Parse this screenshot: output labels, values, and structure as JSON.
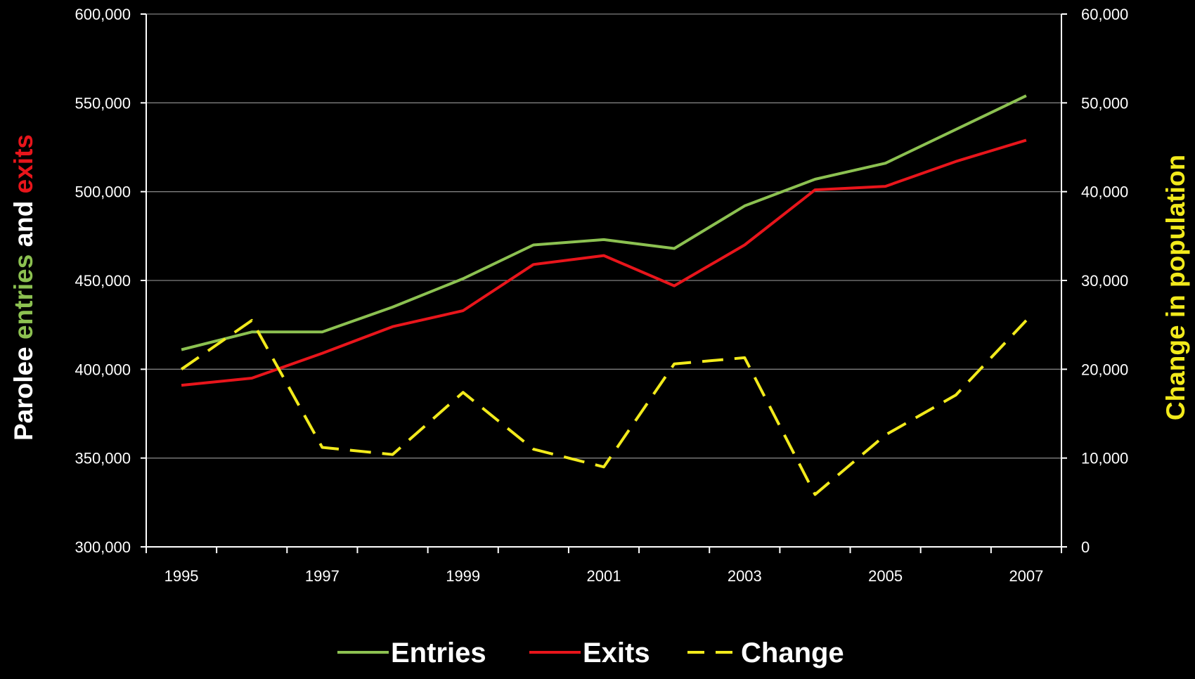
{
  "chart_data": {
    "type": "line",
    "x": [
      1995,
      1996,
      1997,
      1998,
      1999,
      2000,
      2001,
      2002,
      2003,
      2004,
      2005,
      2006,
      2007
    ],
    "x_tick_labels": [
      "1995",
      "1997",
      "1999",
      "2001",
      "2003",
      "2005",
      "2007"
    ],
    "xlim": [
      1994.5,
      2007.5
    ],
    "y_left": {
      "lim": [
        300000,
        600000
      ],
      "ticks": [
        300000,
        350000,
        400000,
        450000,
        500000,
        550000,
        600000
      ],
      "tick_labels": [
        "300,000",
        "350,000",
        "400,000",
        "450,000",
        "500,000",
        "550,000",
        "600,000"
      ],
      "title_parts": [
        {
          "text": "Parolee ",
          "color": "#ffffff"
        },
        {
          "text": "entries",
          "color": "#8cc151"
        },
        {
          "text": " and ",
          "color": "#ffffff"
        },
        {
          "text": "exits",
          "color": "#e8151b"
        }
      ]
    },
    "y_right": {
      "lim": [
        0,
        60000
      ],
      "ticks": [
        0,
        10000,
        20000,
        30000,
        40000,
        50000,
        60000
      ],
      "tick_labels": [
        "0",
        "10,000",
        "20,000",
        "30,000",
        "40,000",
        "50,000",
        "60,000"
      ],
      "title": "Change in population",
      "title_color": "#f2ea1b"
    },
    "series": [
      {
        "name": "Entries",
        "axis": "left",
        "color": "#8cc151",
        "dash": "solid",
        "values": [
          411000,
          421000,
          421000,
          435000,
          451000,
          470000,
          473000,
          468000,
          492000,
          507000,
          516000,
          535000,
          554000
        ]
      },
      {
        "name": "Exits",
        "axis": "left",
        "color": "#e8151b",
        "dash": "solid",
        "values": [
          391000,
          395000,
          409000,
          424000,
          433000,
          459000,
          464000,
          447000,
          470000,
          501000,
          503000,
          517000,
          529000
        ]
      },
      {
        "name": "Change",
        "axis": "right",
        "color": "#f2ea1b",
        "dash": "dashed",
        "values": [
          20000,
          25500,
          11200,
          10400,
          17400,
          11000,
          9000,
          20600,
          21300,
          5900,
          12600,
          17100,
          25500
        ]
      }
    ],
    "grid": "horizontal",
    "legend": {
      "position": "bottom"
    }
  }
}
